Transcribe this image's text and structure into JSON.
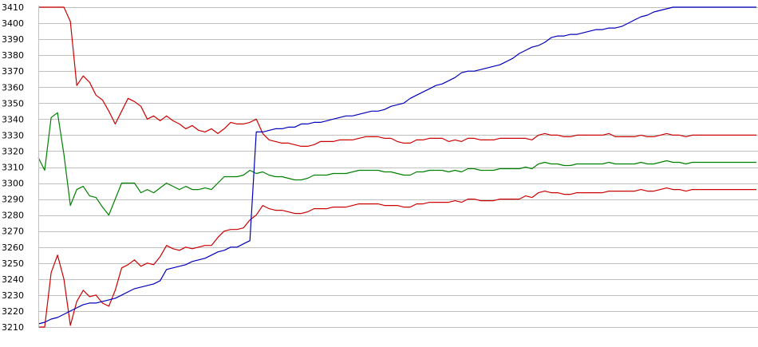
{
  "chart_data": {
    "type": "line",
    "title": "",
    "xlabel": "",
    "ylabel": "",
    "ylim": [
      3210,
      3410
    ],
    "yticks": [
      3210,
      3220,
      3230,
      3240,
      3250,
      3260,
      3270,
      3280,
      3290,
      3300,
      3310,
      3320,
      3330,
      3340,
      3350,
      3360,
      3370,
      3380,
      3390,
      3400,
      3410
    ],
    "grid": "horizontal",
    "legend": "none",
    "x": [
      0,
      1,
      2,
      3,
      4,
      5,
      6,
      7,
      8,
      9,
      10,
      11,
      12,
      13,
      14,
      15,
      16,
      17,
      18,
      19,
      20,
      21,
      22,
      23,
      24,
      25,
      26,
      27,
      28,
      29,
      30,
      31,
      32,
      33,
      34,
      35,
      36,
      37,
      38,
      39,
      40,
      41,
      42,
      43,
      44,
      45,
      46,
      47,
      48,
      49,
      50,
      51,
      52,
      53,
      54,
      55,
      56,
      57,
      58,
      59,
      60,
      61,
      62,
      63,
      64,
      65,
      66,
      67,
      68,
      69,
      70,
      71,
      72,
      73,
      74,
      75,
      76,
      77,
      78,
      79,
      80,
      81,
      82,
      83,
      84,
      85,
      86,
      87,
      88,
      89,
      90,
      91,
      92,
      93,
      94,
      95,
      96,
      97,
      98,
      99,
      100,
      101,
      102,
      103,
      104,
      105,
      106,
      107,
      108,
      109,
      110,
      111,
      112
    ],
    "series": [
      {
        "color": "#cc0000",
        "values": [
          3410,
          3410,
          3410,
          3410,
          3410,
          3401,
          3361,
          3367,
          3363,
          3355,
          3352,
          3345,
          3337,
          3345,
          3353,
          3351,
          3348,
          3340,
          3342,
          3339,
          3342,
          3339,
          3337,
          3334,
          3336,
          3333,
          3332,
          3334,
          3331,
          3334,
          3338,
          3337,
          3337,
          3338,
          3340,
          3331,
          3327,
          3326,
          3325,
          3325,
          3324,
          3323,
          3323,
          3324,
          3326,
          3326,
          3326,
          3327,
          3327,
          3327,
          3328,
          3329,
          3329,
          3329,
          3328,
          3328,
          3326,
          3325,
          3325,
          3327,
          3327,
          3328,
          3328,
          3328,
          3326,
          3327,
          3326,
          3328,
          3328,
          3327,
          3327,
          3327,
          3328,
          3328,
          3328,
          3328,
          3328,
          3327,
          3330,
          3331,
          3330,
          3330,
          3329,
          3329,
          3330,
          3330,
          3330,
          3330,
          3330,
          3331,
          3329,
          3329,
          3329,
          3329,
          3330,
          3329,
          3329,
          3330,
          3331,
          3330,
          3330,
          3329,
          3330,
          3330,
          3330,
          3330,
          3330,
          3330,
          3330,
          3330,
          3330,
          3330,
          3330
        ]
      },
      {
        "color": "#cc0000",
        "values": [
          3210,
          3210,
          3244,
          3255,
          3240,
          3211,
          3226,
          3233,
          3229,
          3230,
          3225,
          3223,
          3233,
          3247,
          3249,
          3252,
          3248,
          3250,
          3249,
          3254,
          3261,
          3259,
          3258,
          3260,
          3259,
          3260,
          3261,
          3261,
          3266,
          3270,
          3271,
          3271,
          3272,
          3277,
          3280,
          3286,
          3284,
          3283,
          3283,
          3282,
          3281,
          3281,
          3282,
          3284,
          3284,
          3284,
          3285,
          3285,
          3285,
          3286,
          3287,
          3287,
          3287,
          3287,
          3286,
          3286,
          3286,
          3285,
          3285,
          3287,
          3287,
          3288,
          3288,
          3288,
          3288,
          3289,
          3288,
          3290,
          3290,
          3289,
          3289,
          3289,
          3290,
          3290,
          3290,
          3290,
          3292,
          3291,
          3294,
          3295,
          3294,
          3294,
          3293,
          3293,
          3294,
          3294,
          3294,
          3294,
          3294,
          3295,
          3295,
          3295,
          3295,
          3295,
          3296,
          3295,
          3295,
          3296,
          3297,
          3296,
          3296,
          3295,
          3296,
          3296,
          3296,
          3296,
          3296,
          3296,
          3296,
          3296,
          3296,
          3296,
          3296
        ]
      },
      {
        "color": "#008000",
        "values": [
          3316,
          3308,
          3341,
          3344,
          3318,
          3286,
          3296,
          3298,
          3292,
          3291,
          3285,
          3280,
          3290,
          3300,
          3300,
          3300,
          3294,
          3296,
          3294,
          3297,
          3300,
          3298,
          3296,
          3298,
          3296,
          3296,
          3297,
          3296,
          3300,
          3304,
          3304,
          3304,
          3305,
          3308,
          3306,
          3307,
          3305,
          3304,
          3304,
          3303,
          3302,
          3302,
          3303,
          3305,
          3305,
          3305,
          3306,
          3306,
          3306,
          3307,
          3308,
          3308,
          3308,
          3308,
          3307,
          3307,
          3306,
          3305,
          3305,
          3307,
          3307,
          3308,
          3308,
          3308,
          3307,
          3308,
          3307,
          3309,
          3309,
          3308,
          3308,
          3308,
          3309,
          3309,
          3309,
          3309,
          3310,
          3309,
          3312,
          3313,
          3312,
          3312,
          3311,
          3311,
          3312,
          3312,
          3312,
          3312,
          3312,
          3313,
          3312,
          3312,
          3312,
          3312,
          3313,
          3312,
          3312,
          3313,
          3314,
          3313,
          3313,
          3312,
          3313,
          3313,
          3313,
          3313,
          3313,
          3313,
          3313,
          3313,
          3313,
          3313,
          3313
        ]
      },
      {
        "color": "#0000bb",
        "values": [
          3212,
          3213,
          3215,
          3216,
          3218,
          3220,
          3222,
          3224,
          3225,
          3225,
          3226,
          3227,
          3228,
          3230,
          3232,
          3234,
          3235,
          3236,
          3237,
          3239,
          3246,
          3247,
          3248,
          3249,
          3251,
          3252,
          3253,
          3255,
          3257,
          3258,
          3260,
          3260,
          3262,
          3264,
          3332,
          3332,
          3333,
          3334,
          3334,
          3335,
          3335,
          3337,
          3337,
          3338,
          3338,
          3339,
          3340,
          3341,
          3342,
          3342,
          3343,
          3344,
          3345,
          3345,
          3346,
          3348,
          3349,
          3350,
          3353,
          3355,
          3357,
          3359,
          3361,
          3362,
          3364,
          3366,
          3369,
          3370,
          3370,
          3371,
          3372,
          3373,
          3374,
          3376,
          3378,
          3381,
          3383,
          3385,
          3386,
          3388,
          3391,
          3392,
          3392,
          3393,
          3393,
          3394,
          3395,
          3396,
          3396,
          3397,
          3397,
          3398,
          3400,
          3402,
          3404,
          3405,
          3407,
          3408,
          3409,
          3410,
          3410,
          3410,
          3410,
          3410,
          3410,
          3410,
          3410,
          3410,
          3410,
          3410,
          3410,
          3410,
          3410
        ]
      }
    ],
    "colors": {
      "grid": "#c0c0c0",
      "axis": "#000000",
      "background": "#ffffff"
    }
  }
}
